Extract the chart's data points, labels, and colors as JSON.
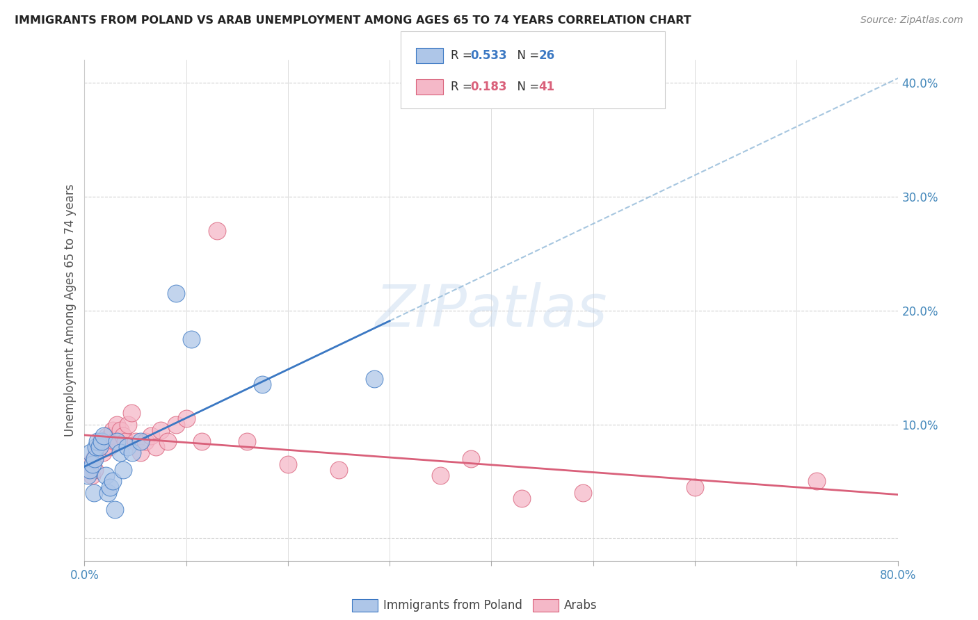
{
  "title": "IMMIGRANTS FROM POLAND VS ARAB UNEMPLOYMENT AMONG AGES 65 TO 74 YEARS CORRELATION CHART",
  "source": "Source: ZipAtlas.com",
  "ylabel": "Unemployment Among Ages 65 to 74 years",
  "xlim": [
    0.0,
    0.8
  ],
  "ylim": [
    -0.02,
    0.42
  ],
  "xtick_positions": [
    0.0,
    0.1,
    0.2,
    0.3,
    0.4,
    0.5,
    0.6,
    0.7,
    0.8
  ],
  "xticklabels": [
    "0.0%",
    "",
    "",
    "",
    "",
    "",
    "",
    "",
    "80.0%"
  ],
  "ytick_positions": [
    0.0,
    0.1,
    0.2,
    0.3,
    0.4
  ],
  "yticklabels": [
    "",
    "10.0%",
    "20.0%",
    "30.0%",
    "40.0%"
  ],
  "poland_R": 0.533,
  "poland_N": 26,
  "arab_R": 0.183,
  "arab_N": 41,
  "poland_color": "#aec6e8",
  "arab_color": "#f5b8c8",
  "poland_line_color": "#3b78c3",
  "arab_line_color": "#d9607a",
  "watermark_text": "ZIPatlas",
  "poland_x": [
    0.003,
    0.005,
    0.006,
    0.008,
    0.009,
    0.01,
    0.011,
    0.013,
    0.015,
    0.017,
    0.019,
    0.021,
    0.023,
    0.025,
    0.028,
    0.03,
    0.032,
    0.035,
    0.038,
    0.042,
    0.047,
    0.055,
    0.09,
    0.105,
    0.175,
    0.285
  ],
  "poland_y": [
    0.055,
    0.06,
    0.075,
    0.065,
    0.04,
    0.07,
    0.08,
    0.085,
    0.08,
    0.085,
    0.09,
    0.055,
    0.04,
    0.045,
    0.05,
    0.025,
    0.085,
    0.075,
    0.06,
    0.08,
    0.075,
    0.085,
    0.215,
    0.175,
    0.135,
    0.14
  ],
  "arab_x": [
    0.003,
    0.005,
    0.007,
    0.009,
    0.01,
    0.012,
    0.014,
    0.016,
    0.018,
    0.02,
    0.022,
    0.024,
    0.026,
    0.028,
    0.03,
    0.032,
    0.035,
    0.038,
    0.04,
    0.043,
    0.046,
    0.05,
    0.055,
    0.06,
    0.065,
    0.07,
    0.075,
    0.082,
    0.09,
    0.1,
    0.115,
    0.13,
    0.16,
    0.2,
    0.25,
    0.35,
    0.38,
    0.43,
    0.49,
    0.6,
    0.72
  ],
  "arab_y": [
    0.06,
    0.065,
    0.055,
    0.07,
    0.06,
    0.075,
    0.08,
    0.085,
    0.075,
    0.085,
    0.09,
    0.08,
    0.09,
    0.095,
    0.085,
    0.1,
    0.095,
    0.09,
    0.085,
    0.1,
    0.11,
    0.085,
    0.075,
    0.085,
    0.09,
    0.08,
    0.095,
    0.085,
    0.1,
    0.105,
    0.085,
    0.27,
    0.085,
    0.065,
    0.06,
    0.055,
    0.07,
    0.035,
    0.04,
    0.045,
    0.05
  ],
  "background_color": "#ffffff",
  "grid_color": "#d0d0d0"
}
